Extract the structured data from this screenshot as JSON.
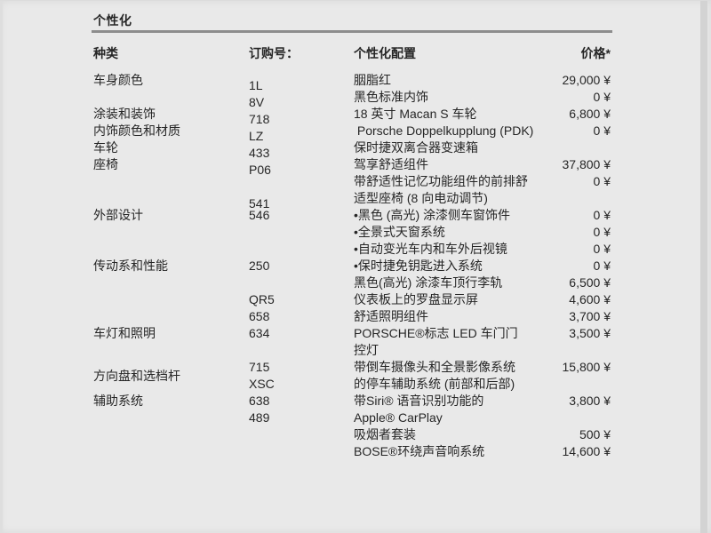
{
  "page": {
    "title": "个性化"
  },
  "table": {
    "headers": {
      "category": "种类",
      "order": "订购号：",
      "config": "个性化配置",
      "price": "价格*"
    },
    "rows": [
      {
        "category": "车身颜色",
        "order": "1L",
        "config": "胭脂红",
        "price": "29,000 ¥"
      },
      {
        "category": "",
        "order": "8V",
        "config": "黑色标准内饰",
        "price": "0 ¥"
      },
      {
        "category": "涂装和装饰",
        "order": "718",
        "config": "18 英寸 Macan S 车轮",
        "price": "6,800 ¥"
      },
      {
        "category": "内饰颜色和材质",
        "order": "LZ",
        "config": " Porsche Doppelkupplung (PDK)",
        "price": "0 ¥"
      },
      {
        "category": "车轮",
        "order": "433",
        "config": "保时捷双离合器变速箱",
        "price": ""
      },
      {
        "category": "座椅",
        "order": "P06",
        "config": "驾享舒适组件",
        "price": "37,800 ¥"
      },
      {
        "category": "",
        "order": "",
        "config": "带舒适性记忆功能组件的前排舒",
        "price": "0 ¥"
      },
      {
        "category": "",
        "order": "541",
        "config": "适型座椅 (8 向电动调节)",
        "price": ""
      },
      {
        "category": "外部设计",
        "order": "546",
        "config": "•黑色 (高光) 涂漆侧车窗饰件",
        "price": "0 ¥"
      },
      {
        "category": "",
        "order": "",
        "config": "•全景式天窗系统",
        "price": "0 ¥"
      },
      {
        "category": "",
        "order": "",
        "config": "•自动变光车内和车外后视镜",
        "price": "0 ¥"
      },
      {
        "category": "传动系和性能",
        "order": "250",
        "config": "•保时捷免钥匙进入系统",
        "price": "0 ¥"
      },
      {
        "category": "",
        "order": "",
        "config": "黑色(高光) 涂漆车顶行李轨",
        "price": "6,500 ¥"
      },
      {
        "category": "",
        "order": "QR5",
        "config": "仪表板上的罗盘显示屏",
        "price": "4,600 ¥"
      },
      {
        "category": "",
        "order": "658",
        "config": "舒适照明组件",
        "price": "3,700 ¥"
      },
      {
        "category": "车灯和照明",
        "order": "634",
        "config": "PORSCHE®标志 LED 车门门",
        "price": "3,500 ¥"
      },
      {
        "category": "",
        "order": "",
        "config": "控灯",
        "price": ""
      },
      {
        "category": "",
        "order": "715",
        "config": "带倒车摄像头和全景影像系统",
        "price": "15,800 ¥"
      },
      {
        "category": "方向盘和选档杆",
        "order": "XSC",
        "config": "的停车辅助系统 (前部和后部)",
        "price": ""
      },
      {
        "category": "辅助系统",
        "order": "638",
        "config": "带Siri® 语音识别功能的",
        "price": "3,800 ¥"
      },
      {
        "category": "",
        "order": "489",
        "config": "Apple® CarPlay",
        "price": ""
      },
      {
        "category": "",
        "order": "",
        "config": "吸烟者套装",
        "price": "500 ¥"
      },
      {
        "category": "",
        "order": "",
        "config": "BOSE®环绕声音响系统",
        "price": "14,600 ¥"
      }
    ]
  },
  "colors": {
    "background": "#e9e9e9",
    "text": "#262626",
    "divider": "#8d8d8d"
  }
}
